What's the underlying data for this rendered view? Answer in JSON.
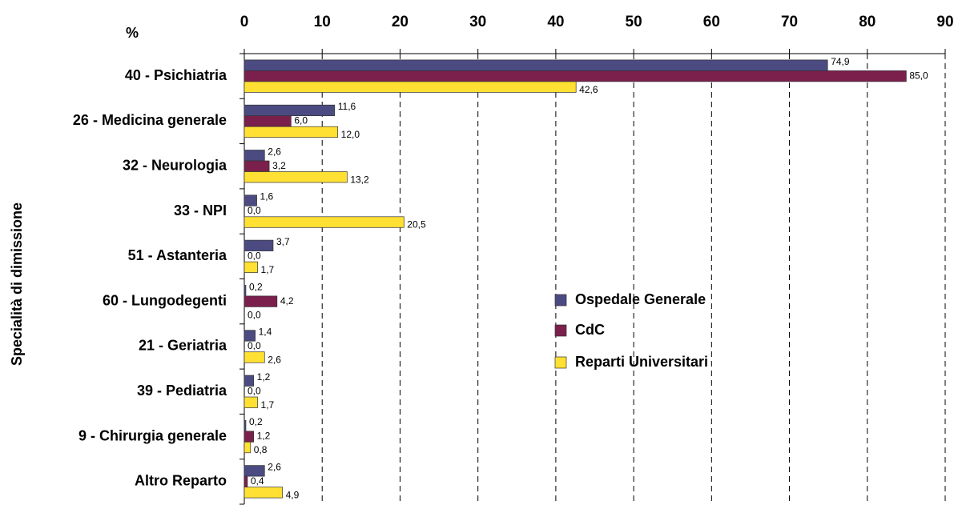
{
  "chart_data": {
    "type": "bar",
    "orientation": "horizontal",
    "x_axis_label": "%",
    "y_axis_label": "Specialità di dimissione",
    "categories": [
      "40 - Psichiatria",
      "26 - Medicina generale",
      "32 - Neurologia",
      "33 - NPI",
      "51 - Astanteria",
      "60 - Lungodegenti",
      "21 - Geriatria",
      "39 - Pediatria",
      "9 - Chirurgia generale",
      "Altro Reparto"
    ],
    "series": [
      {
        "name": "Ospedale Generale",
        "color": "#4b4b82",
        "values": [
          74.9,
          11.6,
          2.6,
          1.6,
          3.7,
          0.2,
          1.4,
          1.2,
          0.2,
          2.6
        ],
        "value_labels": [
          "74,9",
          "11,6",
          "2,6",
          "1,6",
          "3,7",
          "0,2",
          "1,4",
          "1,2",
          "0,2",
          "2,6"
        ]
      },
      {
        "name": "CdC",
        "color": "#7b1f4c",
        "values": [
          85.0,
          6.0,
          3.2,
          0.0,
          0.0,
          4.2,
          0.0,
          0.0,
          1.2,
          0.4
        ],
        "value_labels": [
          "85,0",
          "6,0",
          "3,2",
          "0,0",
          "0,0",
          "4,2",
          "0,0",
          "0,0",
          "1,2",
          "0,4"
        ]
      },
      {
        "name": "Reparti Universitari",
        "color": "#ffe033",
        "values": [
          42.6,
          12.0,
          13.2,
          20.5,
          1.7,
          0.0,
          2.6,
          1.7,
          0.8,
          4.9
        ],
        "value_labels": [
          "42,6",
          "12,0",
          "13,2",
          "20,5",
          "1,7",
          "0,0",
          "2,6",
          "1,7",
          "0,8",
          "4,9"
        ]
      }
    ],
    "xlim": [
      0,
      90
    ],
    "xticks": [
      0,
      10,
      20,
      30,
      40,
      50,
      60,
      70,
      80,
      90
    ],
    "grid": true,
    "legend": "center-right"
  }
}
